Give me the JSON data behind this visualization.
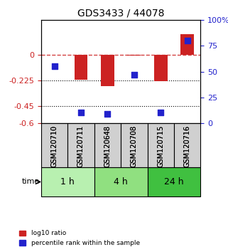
{
  "title": "GDS3433 / 44078",
  "samples": [
    "GSM120710",
    "GSM120711",
    "GSM120648",
    "GSM120708",
    "GSM120715",
    "GSM120716"
  ],
  "log10_ratio": [
    0.0,
    -0.22,
    -0.28,
    -0.01,
    -0.235,
    0.18
  ],
  "percentile_rank": [
    55,
    10,
    9,
    47,
    10,
    80
  ],
  "time_groups": [
    {
      "label": "1 h",
      "samples": [
        0,
        1
      ],
      "color": "#b8f0b0"
    },
    {
      "label": "4 h",
      "samples": [
        2,
        3
      ],
      "color": "#90e080"
    },
    {
      "label": "24 h",
      "samples": [
        4,
        5
      ],
      "color": "#40c040"
    }
  ],
  "ylim_left": [
    -0.6,
    0.3
  ],
  "ylim_right": [
    0,
    100
  ],
  "yticks_left": [
    0,
    -0.225,
    -0.45,
    -0.6
  ],
  "yticks_right": [
    0,
    25,
    50,
    75,
    100
  ],
  "hline_y": 0.0,
  "dotted_lines": [
    -0.225,
    -0.45
  ],
  "bar_color": "#cc2222",
  "dot_color": "#2222cc",
  "bar_width": 0.5,
  "dot_size": 40
}
